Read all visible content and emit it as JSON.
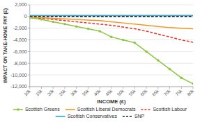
{
  "chart_data": {
    "type": "line",
    "x": [
      10000,
      15000,
      20000,
      25000,
      30000,
      35000,
      40000,
      45000,
      50000,
      55000,
      60000,
      65000,
      70000,
      75000,
      80000
    ],
    "xlim": [
      10000,
      80000
    ],
    "xticks": [
      {
        "value": 10000,
        "label": "10k"
      },
      {
        "value": 15000,
        "label": "15k"
      },
      {
        "value": 20000,
        "label": "20k"
      },
      {
        "value": 25000,
        "label": "25k"
      },
      {
        "value": 30000,
        "label": "30k"
      },
      {
        "value": 35000,
        "label": "35k"
      },
      {
        "value": 40000,
        "label": "40k"
      },
      {
        "value": 45000,
        "label": "45k"
      },
      {
        "value": 50000,
        "label": "50k"
      },
      {
        "value": 55000,
        "label": "55k"
      },
      {
        "value": 60000,
        "label": "60k"
      },
      {
        "value": 65000,
        "label": "65k"
      },
      {
        "value": 70000,
        "label": "70k"
      },
      {
        "value": 75000,
        "label": "75k"
      },
      {
        "value": 80000,
        "label": "80k"
      }
    ],
    "ylim": [
      -12000,
      2000
    ],
    "yticks": [
      {
        "value": 2000,
        "label": "2,000"
      },
      0,
      {
        "value": -2000,
        "label": "-2,000"
      },
      {
        "value": -4000,
        "label": "-4,000"
      },
      {
        "value": -6000,
        "label": "-6,000"
      },
      {
        "value": -8000,
        "label": "-8,000"
      },
      {
        "value": -10000,
        "label": "-10,000"
      },
      {
        "value": -12000,
        "label": "-12,000"
      }
    ],
    "xlabel": "INCOME (£)",
    "ylabel": "IMPACT ON TAKE-HOME PAY (£)",
    "grid": "y",
    "legend": "bottom",
    "series": [
      {
        "name": "Scottish Greens",
        "color": "#8dc63f",
        "marker": "circle",
        "line_style": "solid",
        "values": [
          -200,
          -500,
          -900,
          -1300,
          -1700,
          -2100,
          -2500,
          -3500,
          -4000,
          -4500,
          -6000,
          -7500,
          -9000,
          -10500,
          -11500
        ]
      },
      {
        "name": "Scottish Liberal Democrats",
        "color": "#f7941d",
        "line_style": "solid",
        "values": [
          -100,
          -200,
          -300,
          -400,
          -500,
          -600,
          -700,
          -900,
          -1100,
          -1300,
          -1500,
          -1700,
          -1900,
          -2000,
          -2100
        ]
      },
      {
        "name": "Scottish Labour",
        "color": "#ee3224",
        "line_style": "dashed",
        "values": [
          -200,
          -300,
          -500,
          -700,
          -900,
          -1100,
          -1300,
          -1500,
          -1800,
          -2100,
          -2500,
          -3000,
          -3500,
          -4000,
          -4400
        ]
      },
      {
        "name": "Scottish Conservatives",
        "color": "#29abe2",
        "line_style": "solid",
        "values": [
          200,
          200,
          200,
          200,
          200,
          200,
          200,
          200,
          200,
          200,
          200,
          200,
          200,
          200,
          200
        ]
      },
      {
        "name": "SNP",
        "color": "#1a1a1a",
        "line_style": "dashed",
        "values": [
          0,
          0,
          0,
          0,
          0,
          0,
          0,
          0,
          0,
          0,
          0,
          0,
          0,
          0,
          0
        ]
      }
    ]
  }
}
